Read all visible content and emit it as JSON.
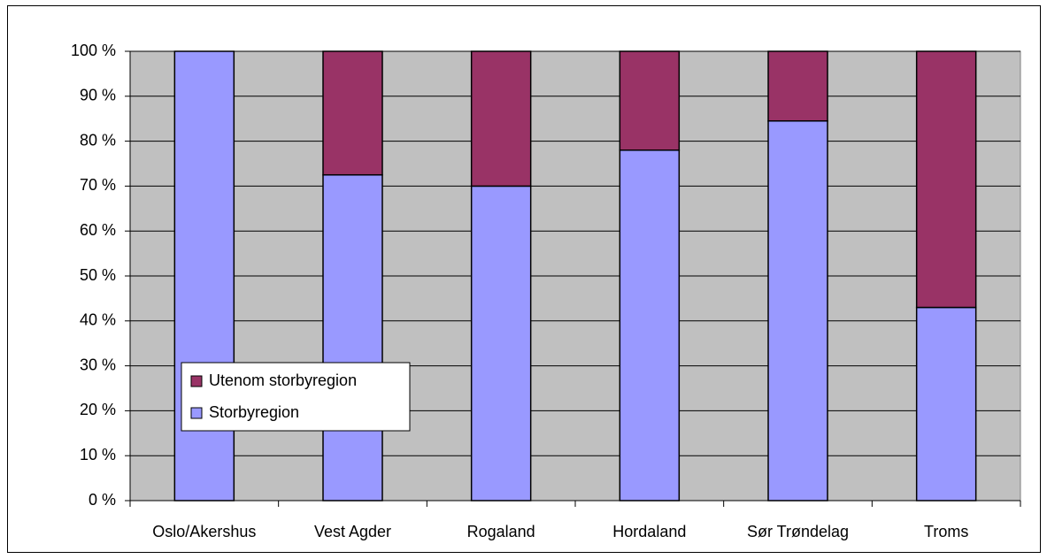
{
  "chart_data": {
    "type": "stacked_bar",
    "categories": [
      "Oslo/Akershus",
      "Vest Agder",
      "Rogaland",
      "Hordaland",
      "Sør Trøndelag",
      "Troms"
    ],
    "series": [
      {
        "name": "Storbyregion",
        "color": "#9999ff",
        "values": [
          100,
          72.5,
          70,
          78,
          84.5,
          43
        ]
      },
      {
        "name": "Utenom storbyregion",
        "color": "#993366",
        "values": [
          0,
          27.5,
          30,
          22,
          15.5,
          57
        ]
      }
    ],
    "ylim": [
      0,
      100
    ],
    "yticks": [
      {
        "value": 0,
        "label": "0 %"
      },
      {
        "value": 10,
        "label": "10 %"
      },
      {
        "value": 20,
        "label": "20 %"
      },
      {
        "value": 30,
        "label": "30 %"
      },
      {
        "value": 40,
        "label": "40 %"
      },
      {
        "value": 50,
        "label": "50 %"
      },
      {
        "value": 60,
        "label": "60 %"
      },
      {
        "value": 70,
        "label": "70 %"
      },
      {
        "value": 80,
        "label": "80 %"
      },
      {
        "value": 90,
        "label": "90 %"
      },
      {
        "value": 100,
        "label": "100 %"
      }
    ],
    "grid": true,
    "plot_background": "#c0c0c0"
  }
}
